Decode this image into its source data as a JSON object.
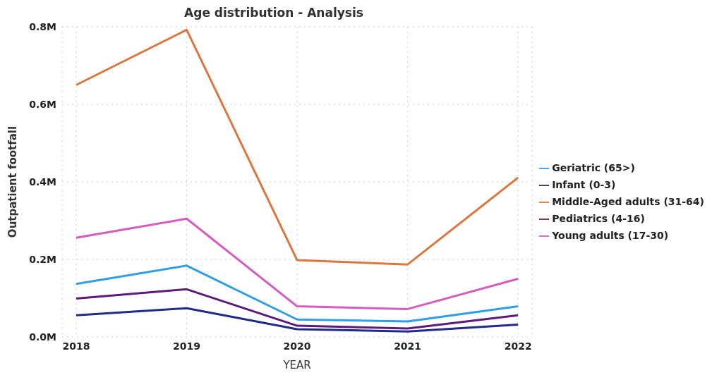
{
  "chart_data": {
    "type": "line",
    "title": "Age distribution - Analysis",
    "xlabel": "YEAR",
    "ylabel": "Outpatient footfall",
    "categories": [
      "2018",
      "2019",
      "2020",
      "2021",
      "2022"
    ],
    "series": [
      {
        "name": "Geriatric (65>)",
        "color": "#2e9ee8",
        "values": [
          0.137,
          0.184,
          0.045,
          0.04,
          0.079
        ]
      },
      {
        "name": "Infant (0-3)",
        "color": "#1f2a8a",
        "values": [
          0.056,
          0.074,
          0.02,
          0.014,
          0.032
        ]
      },
      {
        "name": "Middle-Aged adults (31-64)",
        "color": "#d9773f",
        "values": [
          0.65,
          0.792,
          0.198,
          0.187,
          0.411
        ]
      },
      {
        "name": "Pediatrics (4-16)",
        "color": "#5c1a7a",
        "values": [
          0.099,
          0.123,
          0.029,
          0.022,
          0.056
        ]
      },
      {
        "name": "Young adults (17-30)",
        "color": "#d45cbf",
        "values": [
          0.256,
          0.305,
          0.079,
          0.072,
          0.15
        ]
      }
    ],
    "ylim": [
      0,
      0.8
    ],
    "yticks": [
      {
        "value": 0,
        "label": "0.0M"
      },
      {
        "value": 0.2,
        "label": "0.2M"
      },
      {
        "value": 0.4,
        "label": "0.4M"
      },
      {
        "value": 0.6,
        "label": "0.6M"
      },
      {
        "value": 0.8,
        "label": "0.8M"
      }
    ],
    "grid": true,
    "legend": "right",
    "marker": "none",
    "line_style": "solid"
  }
}
